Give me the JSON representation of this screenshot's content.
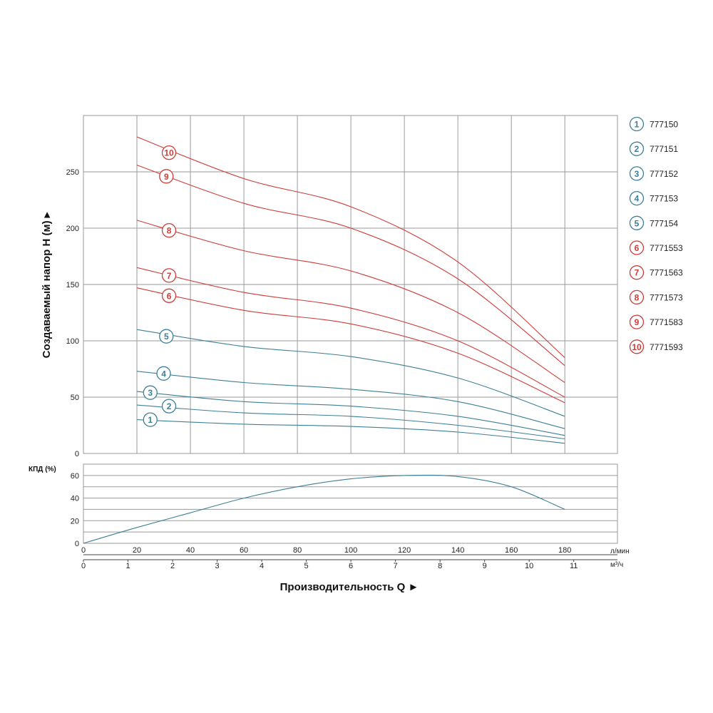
{
  "chart_data": [
    {
      "type": "line",
      "ylabel": "Создаваемый напор H (м) ▸",
      "ylim": [
        0,
        300
      ],
      "yticks": [
        "0",
        "50",
        "100",
        "150",
        "200",
        "250"
      ],
      "xlim": [
        0,
        200
      ],
      "grid": true,
      "legend_position": "right",
      "colors": {
        "blue": "#3d7f96",
        "red": "#cc3d38"
      },
      "series": [
        {
          "name": "777150",
          "id": "1",
          "color": "blue",
          "x": [
            20,
            60,
            100,
            140,
            180
          ],
          "y": [
            30,
            26,
            24,
            19,
            9
          ]
        },
        {
          "name": "777151",
          "id": "2",
          "color": "blue",
          "x": [
            20,
            60,
            100,
            140,
            180
          ],
          "y": [
            43,
            36,
            33,
            25,
            13
          ]
        },
        {
          "name": "777152",
          "id": "3",
          "color": "blue",
          "x": [
            20,
            60,
            100,
            140,
            180
          ],
          "y": [
            55,
            46,
            42,
            33,
            16
          ]
        },
        {
          "name": "777153",
          "id": "4",
          "color": "blue",
          "x": [
            20,
            60,
            100,
            140,
            180
          ],
          "y": [
            73,
            63,
            57,
            46,
            22
          ]
        },
        {
          "name": "777154",
          "id": "5",
          "color": "blue",
          "x": [
            20,
            60,
            100,
            140,
            180
          ],
          "y": [
            110,
            95,
            86,
            67,
            33
          ]
        },
        {
          "name": "7771553",
          "id": "6",
          "color": "red",
          "x": [
            20,
            60,
            100,
            140,
            180
          ],
          "y": [
            147,
            127,
            115,
            89,
            45
          ]
        },
        {
          "name": "7771563",
          "id": "7",
          "color": "red",
          "x": [
            20,
            60,
            100,
            140,
            180
          ],
          "y": [
            165,
            143,
            129,
            100,
            50
          ]
        },
        {
          "name": "7771573",
          "id": "8",
          "color": "red",
          "x": [
            20,
            60,
            100,
            140,
            180
          ],
          "y": [
            207,
            180,
            162,
            125,
            63
          ]
        },
        {
          "name": "7771583",
          "id": "9",
          "color": "red",
          "x": [
            20,
            60,
            100,
            140,
            180
          ],
          "y": [
            256,
            222,
            200,
            155,
            78
          ]
        },
        {
          "name": "7771593",
          "id": "10",
          "color": "red",
          "x": [
            20,
            60,
            100,
            140,
            180
          ],
          "y": [
            281,
            244,
            219,
            170,
            85
          ]
        }
      ]
    },
    {
      "type": "line",
      "ylabel": "КПД (%)",
      "ylim": [
        0,
        70
      ],
      "yticks": [
        "0",
        "20",
        "40",
        "60"
      ],
      "grid": true,
      "series": [
        {
          "color": "blue",
          "x": [
            0,
            20,
            40,
            60,
            80,
            100,
            120,
            140,
            160,
            180
          ],
          "y": [
            0,
            14,
            27,
            40,
            50,
            57,
            60,
            59,
            50,
            30
          ]
        }
      ]
    }
  ],
  "x_axis": {
    "lmin_ticks": [
      "0",
      "20",
      "40",
      "60",
      "80",
      "100",
      "120",
      "140",
      "160",
      "180"
    ],
    "lmin_unit": "л/мин",
    "m3h_ticks": [
      "0",
      "1",
      "2",
      "3",
      "4",
      "5",
      "6",
      "7",
      "8",
      "9",
      "10",
      "11"
    ],
    "m3h_unit": "м³/ч",
    "title": "Производительность Q ►"
  }
}
